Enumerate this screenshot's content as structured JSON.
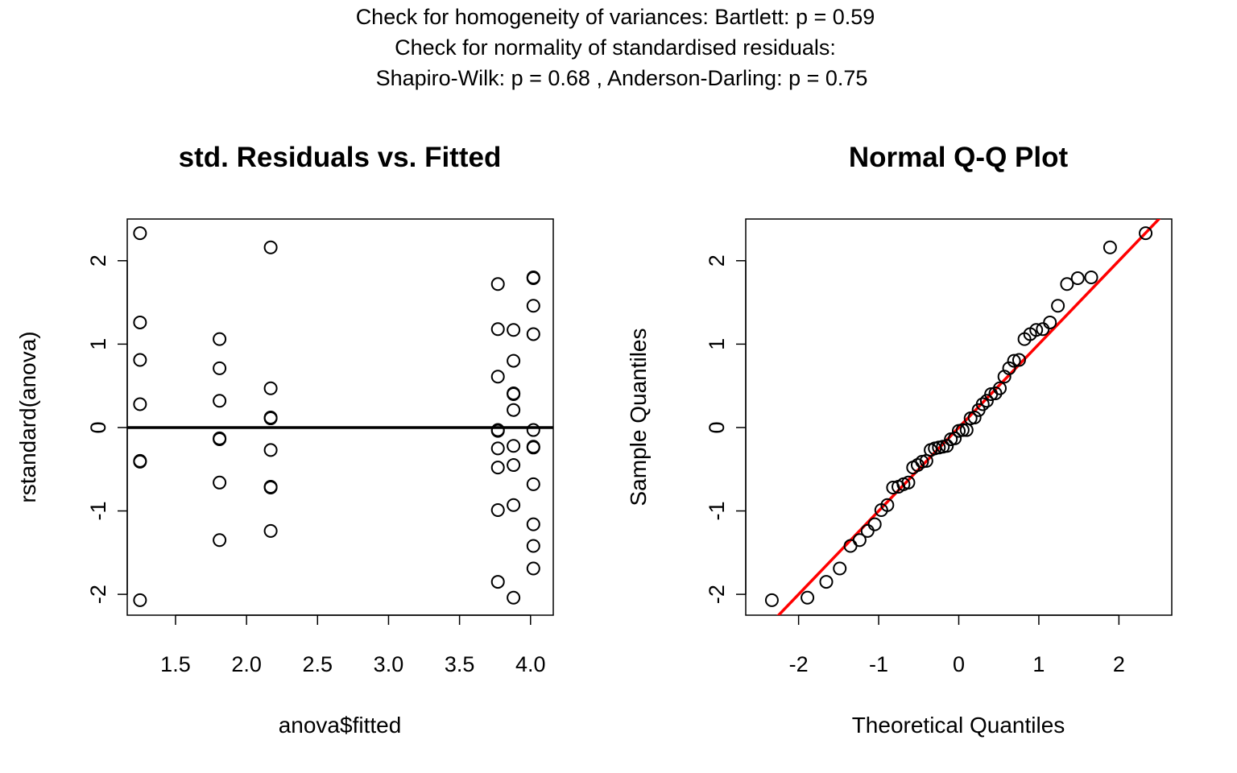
{
  "header": {
    "line1": "Check for homogeneity of variances: Bartlett: p =  0.59",
    "line2": "Check for normality of standardised residuals:",
    "line3": "Shapiro-Wilk: p =  0.68 , Anderson-Darling: p =  0.75"
  },
  "chart_data": [
    {
      "type": "scatter",
      "title": "std. Residuals vs. Fitted",
      "xlabel": "anova$fitted",
      "ylabel": "rstandard(anova)",
      "xlim": [
        1.16,
        4.16
      ],
      "ylim": [
        -2.25,
        2.5
      ],
      "xticks": [
        1.5,
        2.0,
        2.5,
        3.0,
        3.5,
        4.0
      ],
      "xtick_labels": [
        "1.5",
        "2.0",
        "2.5",
        "3.0",
        "3.5",
        "4.0"
      ],
      "yticks": [
        -2,
        -1,
        0,
        1,
        2
      ],
      "ytick_labels": [
        "-2",
        "-1",
        "0",
        "1",
        "2"
      ],
      "reference_line": {
        "y": 0,
        "color": "#000000"
      },
      "points": [
        [
          1.25,
          2.33
        ],
        [
          1.25,
          1.26
        ],
        [
          1.25,
          0.81
        ],
        [
          1.25,
          0.28
        ],
        [
          1.25,
          -0.4
        ],
        [
          1.25,
          -0.41
        ],
        [
          1.25,
          -2.07
        ],
        [
          1.81,
          1.06
        ],
        [
          1.81,
          0.71
        ],
        [
          1.81,
          0.32
        ],
        [
          1.81,
          -0.13
        ],
        [
          1.81,
          -0.14
        ],
        [
          1.81,
          -0.66
        ],
        [
          1.81,
          -1.35
        ],
        [
          2.17,
          2.16
        ],
        [
          2.17,
          0.47
        ],
        [
          2.17,
          0.12
        ],
        [
          2.17,
          0.11
        ],
        [
          2.17,
          -0.27
        ],
        [
          2.17,
          -0.71
        ],
        [
          2.17,
          -0.72
        ],
        [
          2.17,
          -1.24
        ],
        [
          3.77,
          1.72
        ],
        [
          3.77,
          1.18
        ],
        [
          3.77,
          0.61
        ],
        [
          3.77,
          -0.03
        ],
        [
          3.77,
          -0.04
        ],
        [
          3.77,
          -0.25
        ],
        [
          3.77,
          -0.48
        ],
        [
          3.77,
          -0.99
        ],
        [
          3.77,
          -1.85
        ],
        [
          3.88,
          1.17
        ],
        [
          3.88,
          0.8
        ],
        [
          3.88,
          0.41
        ],
        [
          3.88,
          0.4
        ],
        [
          3.88,
          0.21
        ],
        [
          3.88,
          -0.22
        ],
        [
          3.88,
          -0.45
        ],
        [
          3.88,
          -0.93
        ],
        [
          3.88,
          -2.04
        ],
        [
          4.02,
          1.8
        ],
        [
          4.02,
          1.79
        ],
        [
          4.02,
          1.46
        ],
        [
          4.02,
          1.12
        ],
        [
          4.02,
          -0.03
        ],
        [
          4.02,
          -0.23
        ],
        [
          4.02,
          -0.24
        ],
        [
          4.02,
          -0.68
        ],
        [
          4.02,
          -1.16
        ],
        [
          4.02,
          -1.42
        ],
        [
          4.02,
          -1.69
        ]
      ]
    },
    {
      "type": "scatter",
      "title": "Normal Q-Q Plot",
      "xlabel": "Theoretical Quantiles",
      "ylabel": "Sample Quantiles",
      "xlim": [
        -2.66,
        2.66
      ],
      "ylim": [
        -2.25,
        2.5
      ],
      "xticks": [
        -2,
        -1,
        0,
        1,
        2
      ],
      "xtick_labels": [
        "-2",
        "-1",
        "0",
        "1",
        "2"
      ],
      "yticks": [
        -2,
        -1,
        0,
        1,
        2
      ],
      "ytick_labels": [
        "-2",
        "-1",
        "0",
        "1",
        "2"
      ],
      "reference_line": {
        "intercept": 0.0,
        "slope": 1.0,
        "color": "#ff0000"
      }
    }
  ]
}
